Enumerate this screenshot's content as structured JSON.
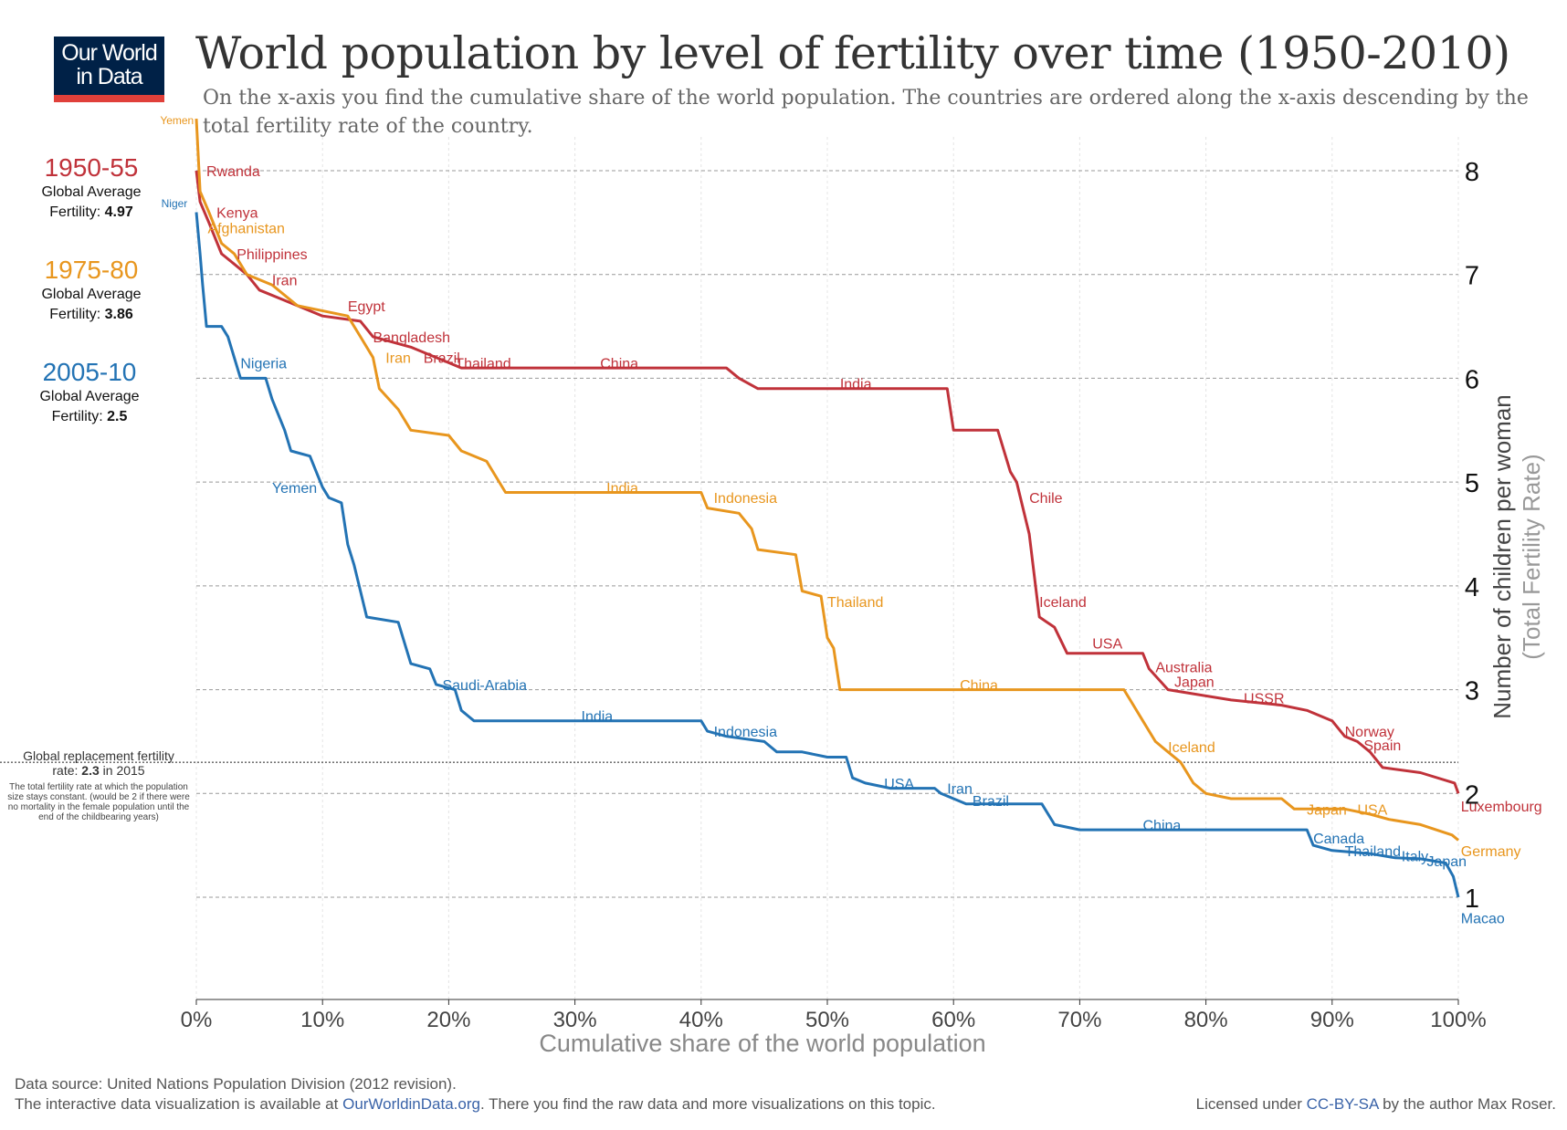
{
  "logo": {
    "line1": "Our World",
    "line2": "in Data"
  },
  "title": "World population by level of fertility over time (1950-2010)",
  "subtitle": "On the x-axis you find the cumulative share of the world population. The countries are ordered along the x-axis descending by the total fertility rate of the country.",
  "legend": [
    {
      "period": "1950-55",
      "line1": "Global Average",
      "label": "Fertility:",
      "value": "4.97",
      "color": "#c0323a"
    },
    {
      "period": "1975-80",
      "line1": "Global Average",
      "label": "Fertility:",
      "value": "3.86",
      "color": "#e8961e"
    },
    {
      "period": "2005-10",
      "line1": "Global Average",
      "label": "Fertility:",
      "value": "2.5",
      "color": "#2373b4"
    }
  ],
  "replacement": {
    "line1": "Global replacement fertility",
    "line2a": "rate: ",
    "line2b": "2.3",
    "line2c": " in 2015",
    "note": "The total fertility rate at which the population size stays constant. (would be 2 if there were no mortality in the female population until the end of the childbearing years)"
  },
  "footer": {
    "line1": "Data source: United Nations Population Division (2012 revision).",
    "line2a": "The interactive data visualization is available at ",
    "line2link": "OurWorldinData.org",
    "line2b": ". There you find the raw data and more visualizations on this topic.",
    "license_a": "Licensed under ",
    "license_link": "CC-BY-SA",
    "license_b": " by the author Max Roser."
  },
  "chart_data": {
    "type": "line",
    "xlabel": "Cumulative share of the world population",
    "ylabel": "Number of children per woman",
    "ylabel2": "(Total Fertility Rate)",
    "xlim": [
      0,
      100
    ],
    "ylim": [
      0,
      8.5
    ],
    "xticks": [
      "0%",
      "10%",
      "20%",
      "30%",
      "40%",
      "50%",
      "60%",
      "70%",
      "80%",
      "90%",
      "100%"
    ],
    "yticks": [
      1,
      2,
      3,
      4,
      5,
      6,
      7,
      8
    ],
    "replacement_rate": 2.3,
    "series": [
      {
        "name": "1950-55",
        "color": "#c0323a",
        "points": [
          [
            0,
            8
          ],
          [
            0.3,
            7.7
          ],
          [
            1,
            7.5
          ],
          [
            2,
            7.2
          ],
          [
            3,
            7.1
          ],
          [
            4,
            7.0
          ],
          [
            5,
            6.85
          ],
          [
            7,
            6.75
          ],
          [
            10,
            6.6
          ],
          [
            13,
            6.55
          ],
          [
            14,
            6.4
          ],
          [
            17,
            6.3
          ],
          [
            20,
            6.15
          ],
          [
            21,
            6.1
          ],
          [
            42,
            6.1
          ],
          [
            43,
            6.0
          ],
          [
            44.5,
            5.9
          ],
          [
            59.5,
            5.9
          ],
          [
            60,
            5.5
          ],
          [
            63.5,
            5.5
          ],
          [
            64.5,
            5.1
          ],
          [
            65,
            5.0
          ],
          [
            66,
            4.5
          ],
          [
            66.5,
            4.0
          ],
          [
            66.8,
            3.7
          ],
          [
            68,
            3.6
          ],
          [
            69,
            3.35
          ],
          [
            75,
            3.35
          ],
          [
            75.5,
            3.2
          ],
          [
            77,
            3.0
          ],
          [
            82,
            2.9
          ],
          [
            86,
            2.85
          ],
          [
            88,
            2.8
          ],
          [
            90,
            2.7
          ],
          [
            91,
            2.55
          ],
          [
            92,
            2.5
          ],
          [
            93,
            2.4
          ],
          [
            94,
            2.25
          ],
          [
            97,
            2.2
          ],
          [
            99.7,
            2.1
          ],
          [
            100,
            2.0
          ]
        ],
        "labels": [
          [
            0.8,
            8.0,
            "Rwanda"
          ],
          [
            1.6,
            7.6,
            "Kenya"
          ],
          [
            3.2,
            7.2,
            "Philippines"
          ],
          [
            6,
            6.95,
            "Iran"
          ],
          [
            12,
            6.7,
            "Egypt"
          ],
          [
            14,
            6.4,
            "Bangladesh"
          ],
          [
            18,
            6.2,
            "Brazil"
          ],
          [
            20.5,
            6.15,
            "Thailand"
          ],
          [
            32,
            6.15,
            "China"
          ],
          [
            51,
            5.95,
            "India"
          ],
          [
            66,
            4.85,
            "Chile"
          ],
          [
            66.8,
            3.85,
            "Iceland"
          ],
          [
            71,
            3.45,
            "USA"
          ],
          [
            76,
            3.22,
            "Australia"
          ],
          [
            77.5,
            3.08,
            "Japan"
          ],
          [
            83,
            2.92,
            "USSR"
          ],
          [
            91,
            2.6,
            "Norway"
          ],
          [
            92.5,
            2.47,
            "Spain"
          ],
          [
            100.2,
            1.88,
            "Luxembourg"
          ]
        ]
      },
      {
        "name": "1975-80",
        "color": "#e8961e",
        "points": [
          [
            0,
            8.5
          ],
          [
            0.3,
            7.8
          ],
          [
            1,
            7.6
          ],
          [
            2,
            7.3
          ],
          [
            3,
            7.2
          ],
          [
            4,
            7.0
          ],
          [
            6,
            6.9
          ],
          [
            8,
            6.7
          ],
          [
            12,
            6.6
          ],
          [
            13,
            6.4
          ],
          [
            14,
            6.2
          ],
          [
            14.5,
            5.9
          ],
          [
            16,
            5.7
          ],
          [
            17,
            5.5
          ],
          [
            20,
            5.45
          ],
          [
            21,
            5.3
          ],
          [
            23,
            5.2
          ],
          [
            24,
            5.0
          ],
          [
            24.5,
            4.9
          ],
          [
            40,
            4.9
          ],
          [
            40.5,
            4.75
          ],
          [
            43,
            4.7
          ],
          [
            44,
            4.55
          ],
          [
            44.5,
            4.35
          ],
          [
            47.5,
            4.3
          ],
          [
            48,
            3.95
          ],
          [
            49.5,
            3.9
          ],
          [
            50,
            3.5
          ],
          [
            50.5,
            3.4
          ],
          [
            51,
            3.0
          ],
          [
            73.5,
            3.0
          ],
          [
            74,
            2.9
          ],
          [
            75,
            2.7
          ],
          [
            76,
            2.5
          ],
          [
            77,
            2.4
          ],
          [
            78,
            2.3
          ],
          [
            79,
            2.1
          ],
          [
            80,
            2.0
          ],
          [
            82,
            1.95
          ],
          [
            86,
            1.95
          ],
          [
            87,
            1.85
          ],
          [
            91,
            1.85
          ],
          [
            93,
            1.8
          ],
          [
            94.5,
            1.75
          ],
          [
            97,
            1.7
          ],
          [
            99.5,
            1.6
          ],
          [
            100,
            1.55
          ]
        ],
        "labels": [
          [
            0.9,
            7.45,
            "Afghanistan"
          ],
          [
            15,
            6.2,
            "Iran"
          ],
          [
            32.5,
            4.95,
            "India"
          ],
          [
            41,
            4.85,
            "Indonesia"
          ],
          [
            50,
            3.85,
            "Thailand"
          ],
          [
            60.5,
            3.05,
            "China"
          ],
          [
            77,
            2.45,
            "Iceland"
          ],
          [
            88,
            1.85,
            "Japan"
          ],
          [
            92,
            1.85,
            "USA"
          ],
          [
            100.2,
            1.45,
            "Germany"
          ],
          [
            -0.2,
            8.5,
            "Yemen"
          ]
        ]
      },
      {
        "name": "2005-10",
        "color": "#2373b4",
        "points": [
          [
            0,
            7.6
          ],
          [
            0.3,
            7.2
          ],
          [
            0.5,
            6.9
          ],
          [
            0.8,
            6.5
          ],
          [
            2,
            6.5
          ],
          [
            2.5,
            6.4
          ],
          [
            3.5,
            6.0
          ],
          [
            5.5,
            6.0
          ],
          [
            6,
            5.8
          ],
          [
            7,
            5.5
          ],
          [
            7.5,
            5.3
          ],
          [
            9,
            5.25
          ],
          [
            9.5,
            5.1
          ],
          [
            10,
            4.95
          ],
          [
            10.5,
            4.85
          ],
          [
            11.5,
            4.8
          ],
          [
            12,
            4.4
          ],
          [
            12.5,
            4.2
          ],
          [
            13,
            3.95
          ],
          [
            13.5,
            3.7
          ],
          [
            16,
            3.65
          ],
          [
            16.5,
            3.45
          ],
          [
            17,
            3.25
          ],
          [
            18.5,
            3.2
          ],
          [
            19,
            3.05
          ],
          [
            20.5,
            3.0
          ],
          [
            21,
            2.8
          ],
          [
            21.5,
            2.75
          ],
          [
            22,
            2.7
          ],
          [
            40,
            2.7
          ],
          [
            40.5,
            2.6
          ],
          [
            42,
            2.55
          ],
          [
            45,
            2.5
          ],
          [
            46,
            2.4
          ],
          [
            48,
            2.4
          ],
          [
            50,
            2.35
          ],
          [
            51.5,
            2.35
          ],
          [
            52,
            2.15
          ],
          [
            53,
            2.1
          ],
          [
            55,
            2.05
          ],
          [
            58.5,
            2.05
          ],
          [
            59,
            2.0
          ],
          [
            61,
            1.9
          ],
          [
            67,
            1.9
          ],
          [
            68,
            1.7
          ],
          [
            70,
            1.65
          ],
          [
            88,
            1.65
          ],
          [
            88.5,
            1.5
          ],
          [
            90,
            1.45
          ],
          [
            93,
            1.42
          ],
          [
            95,
            1.38
          ],
          [
            97,
            1.37
          ],
          [
            99,
            1.33
          ],
          [
            99.6,
            1.2
          ],
          [
            100,
            1.0
          ]
        ],
        "labels": [
          [
            -0.7,
            7.7,
            "Niger"
          ],
          [
            3.5,
            6.15,
            "Nigeria"
          ],
          [
            6,
            4.95,
            "Yemen"
          ],
          [
            19.5,
            3.05,
            "Saudi-Arabia"
          ],
          [
            30.5,
            2.75,
            "India"
          ],
          [
            41,
            2.6,
            "Indonesia"
          ],
          [
            54.5,
            2.1,
            "USA"
          ],
          [
            59.5,
            2.05,
            "Iran"
          ],
          [
            61.5,
            1.93,
            "Brazil"
          ],
          [
            75,
            1.7,
            "China"
          ],
          [
            88.5,
            1.57,
            "Canada"
          ],
          [
            91,
            1.45,
            "Thailand"
          ],
          [
            95.5,
            1.4,
            "Italy"
          ],
          [
            97.5,
            1.35,
            "Japan"
          ],
          [
            100.2,
            0.8,
            "Macao"
          ]
        ]
      }
    ]
  }
}
